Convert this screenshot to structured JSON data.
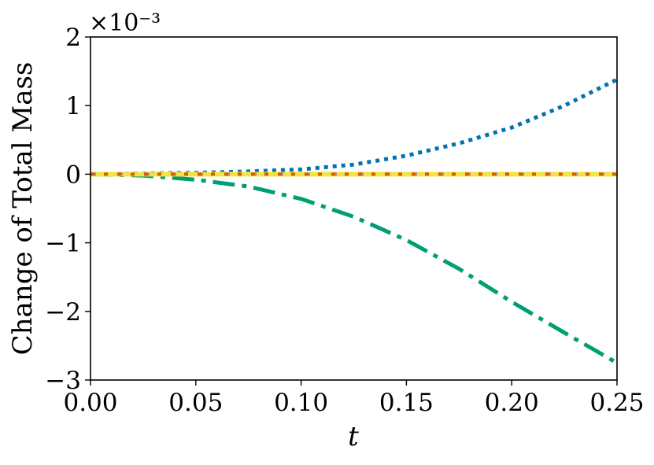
{
  "chart_data": {
    "type": "line",
    "title": "",
    "xlabel": "t",
    "ylabel": "Change of Total Mass",
    "y_offset_label": "×10⁻³",
    "xlim": [
      0.0,
      0.25
    ],
    "ylim": [
      -3,
      2
    ],
    "x_ticks": [
      0.0,
      0.05,
      0.1,
      0.15,
      0.2,
      0.25
    ],
    "x_tick_labels": [
      "0.00",
      "0.05",
      "0.10",
      "0.15",
      "0.20",
      "0.25"
    ],
    "y_ticks": [
      -3,
      -2,
      -1,
      0,
      1,
      2
    ],
    "y_tick_labels": [
      "−3",
      "−2",
      "−1",
      "0",
      "1",
      "2"
    ],
    "grid": false,
    "legend": "none",
    "series": [
      {
        "color": "#0072b2",
        "style": "dotted",
        "x": [
          0.0,
          0.025,
          0.05,
          0.075,
          0.1,
          0.125,
          0.15,
          0.175,
          0.2,
          0.225,
          0.25
        ],
        "y": [
          0.0,
          0.01,
          0.02,
          0.04,
          0.07,
          0.14,
          0.27,
          0.45,
          0.68,
          1.0,
          1.38
        ]
      },
      {
        "color": "#009e73",
        "style": "dashdot",
        "x": [
          0.0,
          0.025,
          0.05,
          0.075,
          0.1,
          0.125,
          0.15,
          0.175,
          0.2,
          0.225,
          0.25
        ],
        "y": [
          0.0,
          -0.02,
          -0.08,
          -0.18,
          -0.36,
          -0.62,
          -0.96,
          -1.38,
          -1.86,
          -2.31,
          -2.75
        ]
      },
      {
        "color": "#f0e442",
        "style": "solid",
        "x": [
          0.0,
          0.25
        ],
        "y": [
          0.0,
          0.0
        ]
      },
      {
        "color": "#cc79a7",
        "style": "dashed",
        "x": [
          0.0,
          0.25
        ],
        "y": [
          0.0,
          0.0
        ]
      },
      {
        "color": "#d55e00",
        "style": "dashed-offset",
        "x": [
          0.0,
          0.25
        ],
        "y": [
          0.0,
          0.0
        ]
      }
    ]
  }
}
